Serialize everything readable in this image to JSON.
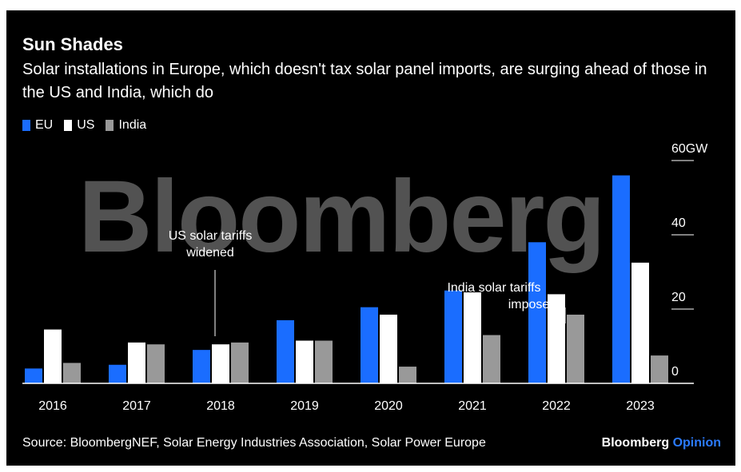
{
  "header": {
    "title": "Sun Shades",
    "subtitle": "Solar installations in Europe, which doesn't tax solar panel imports, are surging ahead of those in the US and India, which do"
  },
  "watermark": "Bloomberg",
  "footer": {
    "source": "Source: BloombergNEF, Solar Energy Industries Association, Solar Power Europe",
    "brand_main": "Bloomberg",
    "brand_sub": "Opinion"
  },
  "colors": {
    "EU": "#1a6dff",
    "US": "#ffffff",
    "India": "#999999",
    "background": "#000000",
    "brand_accent": "#2b7bff"
  },
  "chart_data": {
    "type": "bar",
    "title": "Sun Shades",
    "categories": [
      "2016",
      "2017",
      "2018",
      "2019",
      "2020",
      "2021",
      "2022",
      "2023"
    ],
    "series": [
      {
        "name": "EU",
        "values": [
          4,
          5,
          9,
          17,
          20.5,
          25,
          38,
          56
        ]
      },
      {
        "name": "US",
        "values": [
          14.5,
          11,
          10.5,
          11.5,
          18.5,
          24.5,
          24,
          32.5
        ]
      },
      {
        "name": "India",
        "values": [
          5.5,
          10.5,
          11,
          11.5,
          4.5,
          13,
          18.5,
          7.5
        ]
      }
    ],
    "ylim": [
      0,
      60
    ],
    "yticks": [
      0,
      20,
      40,
      60
    ],
    "ytick_labels": [
      "0",
      "20",
      "40",
      "60GW"
    ],
    "y_unit": "GW",
    "legend_position": "top-left",
    "annotations": [
      {
        "text_lines": [
          "US solar tariffs",
          "widened"
        ],
        "category": "2018"
      },
      {
        "text_lines": [
          "India solar tariffs",
          "imposed"
        ],
        "category": "2022"
      }
    ]
  }
}
